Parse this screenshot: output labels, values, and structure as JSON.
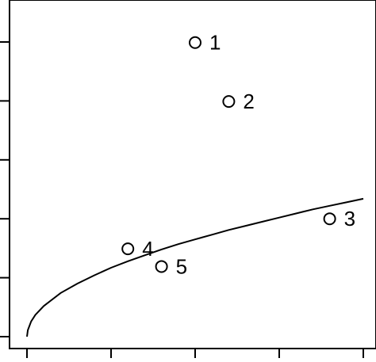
{
  "chart_data": {
    "type": "scatter",
    "title": "",
    "xlabel": "",
    "ylabel": "",
    "xlim": [
      0,
      4
    ],
    "ylim": [
      0,
      5
    ],
    "xticks": [
      0,
      1,
      2,
      3,
      4
    ],
    "yticks": [
      0,
      1,
      2,
      3,
      4,
      5
    ],
    "grid": false,
    "points": [
      {
        "label": "1",
        "x": 2.0,
        "y": 4.99
      },
      {
        "label": "2",
        "x": 2.4,
        "y": 3.99
      },
      {
        "label": "3",
        "x": 3.6,
        "y": 2.0
      },
      {
        "label": "4",
        "x": 1.2,
        "y": 1.49
      },
      {
        "label": "5",
        "x": 1.6,
        "y": 1.19
      }
    ],
    "curve": {
      "type": "line",
      "x": [
        0.0,
        0.01,
        0.05,
        0.1,
        0.2,
        0.4,
        0.6,
        0.8,
        1.0,
        1.2,
        1.4,
        1.6,
        1.8,
        2.0,
        2.2,
        2.4,
        2.6,
        2.8,
        3.0,
        3.2,
        3.4,
        3.6,
        3.8,
        4.0
      ],
      "y": [
        0.0,
        0.11,
        0.26,
        0.37,
        0.52,
        0.74,
        0.9,
        1.04,
        1.17,
        1.28,
        1.38,
        1.48,
        1.57,
        1.65,
        1.73,
        1.81,
        1.88,
        1.95,
        2.02,
        2.09,
        2.16,
        2.22,
        2.28,
        2.34
      ]
    }
  }
}
